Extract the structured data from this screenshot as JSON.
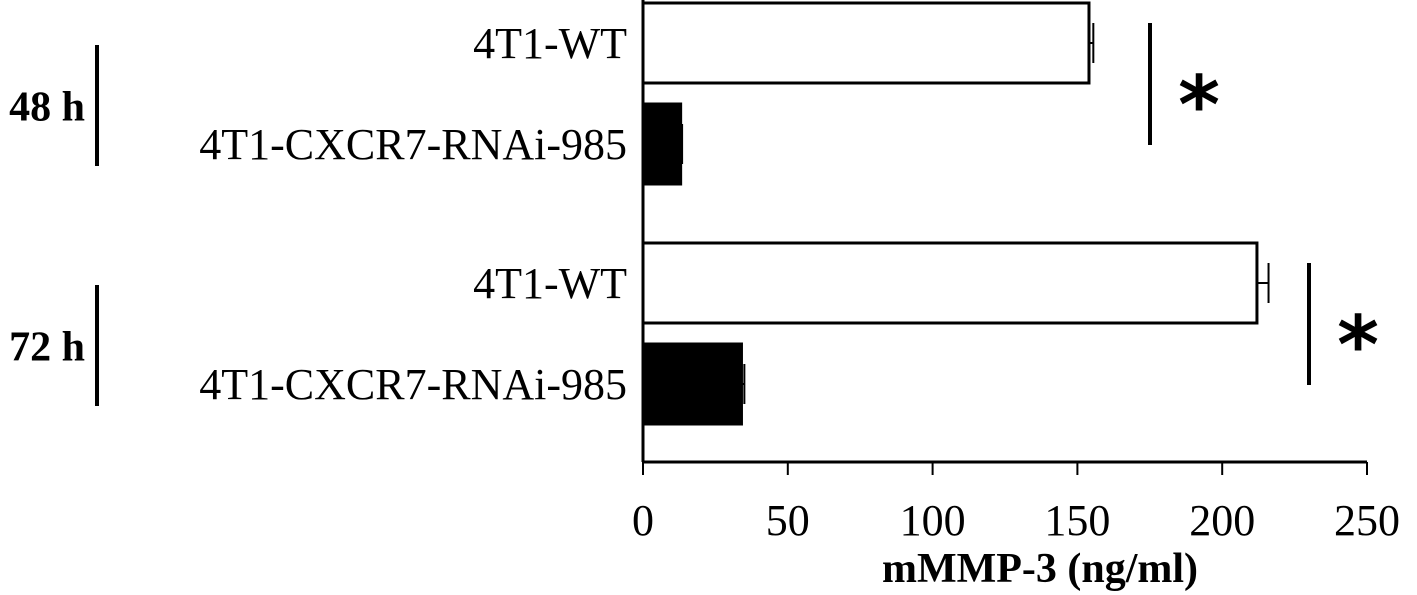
{
  "chart_data": {
    "type": "bar",
    "orientation": "horizontal",
    "xlabel": "mMMP-3 (ng/ml)",
    "xlim": [
      0,
      250
    ],
    "xticks": [
      0,
      50,
      100,
      150,
      200,
      250
    ],
    "groups": [
      {
        "label": "48 h",
        "significance": "*",
        "bars": [
          {
            "category": "4T1-WT",
            "value": 154,
            "error": 1.5,
            "fill": "#ffffff"
          },
          {
            "category": "4T1-CXCR7-RNAi-985",
            "value": 13,
            "error": 0.5,
            "fill": "#000000"
          }
        ]
      },
      {
        "label": "72 h",
        "significance": "*",
        "bars": [
          {
            "category": "4T1-WT",
            "value": 212,
            "error": 4,
            "fill": "#ffffff"
          },
          {
            "category": "4T1-CXCR7-RNAi-985",
            "value": 34,
            "error": 1,
            "fill": "#000000"
          }
        ]
      }
    ],
    "grid": false,
    "legend": "none"
  }
}
